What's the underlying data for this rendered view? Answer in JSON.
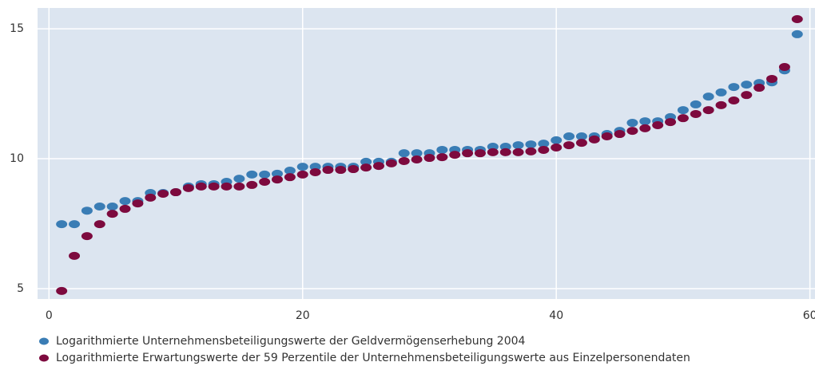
{
  "chart_data": {
    "type": "scatter",
    "x": [
      1,
      2,
      3,
      4,
      5,
      6,
      7,
      8,
      9,
      10,
      11,
      12,
      13,
      14,
      15,
      16,
      17,
      18,
      19,
      20,
      21,
      22,
      23,
      24,
      25,
      26,
      27,
      28,
      29,
      30,
      31,
      32,
      33,
      34,
      35,
      36,
      37,
      38,
      39,
      40,
      41,
      42,
      43,
      44,
      45,
      46,
      47,
      48,
      49,
      50,
      51,
      52,
      53,
      54,
      55,
      56,
      57,
      58,
      59
    ],
    "series": [
      {
        "name": "Logarithmierte Unternehmensbeteiligungswerte der Geldvermögenserhebung 2004",
        "color": "#3a7db5",
        "values": [
          7.48,
          7.48,
          8.0,
          8.16,
          8.16,
          8.37,
          8.37,
          8.68,
          8.68,
          8.71,
          8.93,
          9.02,
          9.02,
          9.11,
          9.23,
          9.39,
          9.39,
          9.42,
          9.54,
          9.69,
          9.69,
          9.69,
          9.69,
          9.69,
          9.88,
          9.88,
          9.88,
          10.21,
          10.21,
          10.21,
          10.34,
          10.34,
          10.34,
          10.34,
          10.46,
          10.46,
          10.52,
          10.55,
          10.58,
          10.71,
          10.86,
          10.86,
          10.86,
          10.95,
          11.07,
          11.38,
          11.44,
          11.44,
          11.6,
          11.87,
          12.09,
          12.39,
          12.55,
          12.76,
          12.85,
          12.91,
          12.94,
          13.4,
          14.79
        ]
      },
      {
        "name": "Logarithmierte Erwartungswerte der 59 Perzentile der Unternehmensbeteiligungswerte aus Einzelpersonendaten",
        "color": "#7d0a3e",
        "values": [
          4.91,
          6.26,
          7.02,
          7.48,
          7.88,
          8.07,
          8.28,
          8.5,
          8.65,
          8.71,
          8.87,
          8.93,
          8.93,
          8.93,
          8.93,
          8.99,
          9.11,
          9.2,
          9.29,
          9.39,
          9.48,
          9.57,
          9.57,
          9.6,
          9.66,
          9.72,
          9.82,
          9.91,
          9.97,
          10.03,
          10.06,
          10.15,
          10.21,
          10.21,
          10.25,
          10.25,
          10.25,
          10.28,
          10.34,
          10.43,
          10.52,
          10.61,
          10.74,
          10.86,
          10.95,
          11.07,
          11.17,
          11.29,
          11.41,
          11.56,
          11.72,
          11.87,
          12.06,
          12.24,
          12.45,
          12.73,
          13.07,
          13.53,
          15.37
        ]
      }
    ],
    "xlim": [
      -0.9,
      60.4
    ],
    "ylim": [
      4.6,
      15.8
    ],
    "xticks": [
      0,
      20,
      40,
      60
    ],
    "yticks": [
      5,
      10,
      15
    ],
    "grid": true,
    "legend": "bottom",
    "background": "#dce5f0"
  }
}
